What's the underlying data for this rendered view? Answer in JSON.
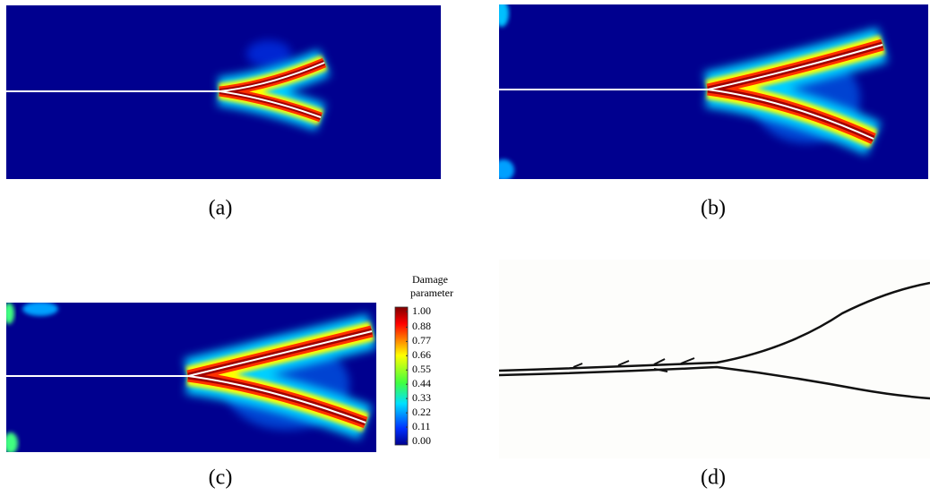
{
  "panels": [
    {
      "label": "(a)"
    },
    {
      "label": "(b)"
    },
    {
      "label": "(c)"
    },
    {
      "label": "(d)"
    }
  ],
  "colorbar": {
    "title": [
      "Damage",
      "parameter"
    ],
    "ticks": [
      {
        "value": 1,
        "label": "1.00"
      },
      {
        "value": 0.88,
        "label": "0.88"
      },
      {
        "value": 0.77,
        "label": "0.77"
      },
      {
        "value": 0.66,
        "label": "0.66"
      },
      {
        "value": 0.55,
        "label": "0.55"
      },
      {
        "value": 0.44,
        "label": "0.44"
      },
      {
        "value": 0.33,
        "label": "0.33"
      },
      {
        "value": 0.22,
        "label": "0.22"
      },
      {
        "value": 0.11,
        "label": "0.11"
      },
      {
        "value": 0,
        "label": "0.00"
      }
    ]
  }
}
